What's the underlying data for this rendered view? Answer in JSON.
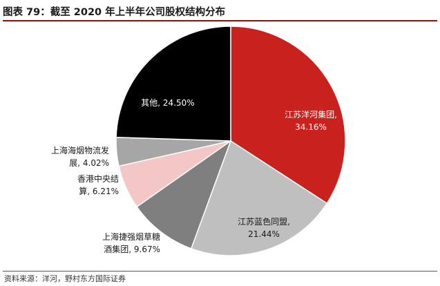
{
  "title": "图表 79：截至 2020 年上半年公司股权结构分布",
  "source": "资料来源：洋河，野村东方国际证券",
  "chart_data": {
    "type": "pie",
    "title": "",
    "slices": [
      {
        "name": "江苏洋河集团",
        "value": 34.16,
        "value_label": "34.16%",
        "color": "#c9211e"
      },
      {
        "name": "江苏蓝色同盟",
        "value": 21.44,
        "value_label": "21.44%",
        "color": "#bfbfbf"
      },
      {
        "name": "上海捷强烟草糖酒集团",
        "value": 9.67,
        "value_label": "9.67%",
        "color": "#7f7f7f"
      },
      {
        "name": "香港中央结算",
        "value": 6.21,
        "value_label": "6.21%",
        "color": "#f4c7c7"
      },
      {
        "name": "上海海烟物流发展",
        "value": 4.02,
        "value_label": "4.02%",
        "color": "#a6a6a6"
      },
      {
        "name": "其他",
        "value": 24.5,
        "value_label": "24.50%",
        "color": "#000000"
      }
    ],
    "labels": [
      {
        "lines": [
          "江苏洋河集团,",
          "34.16%"
        ],
        "color": "#ffffff"
      },
      {
        "lines": [
          "江苏蓝色同盟,",
          "21.44%"
        ],
        "color": "#1a1a1a"
      },
      {
        "lines": [
          "上海捷强烟草糖",
          "酒集团, 9.67%"
        ],
        "color": "#1a1a1a"
      },
      {
        "lines": [
          "香港中央结",
          "算, 6.21%"
        ],
        "color": "#1a1a1a"
      },
      {
        "lines": [
          "上海海烟物流发",
          "展, 4.02%"
        ],
        "color": "#1a1a1a"
      },
      {
        "lines": [
          "其他, 24.50%"
        ],
        "color": "#ffffff"
      }
    ]
  }
}
